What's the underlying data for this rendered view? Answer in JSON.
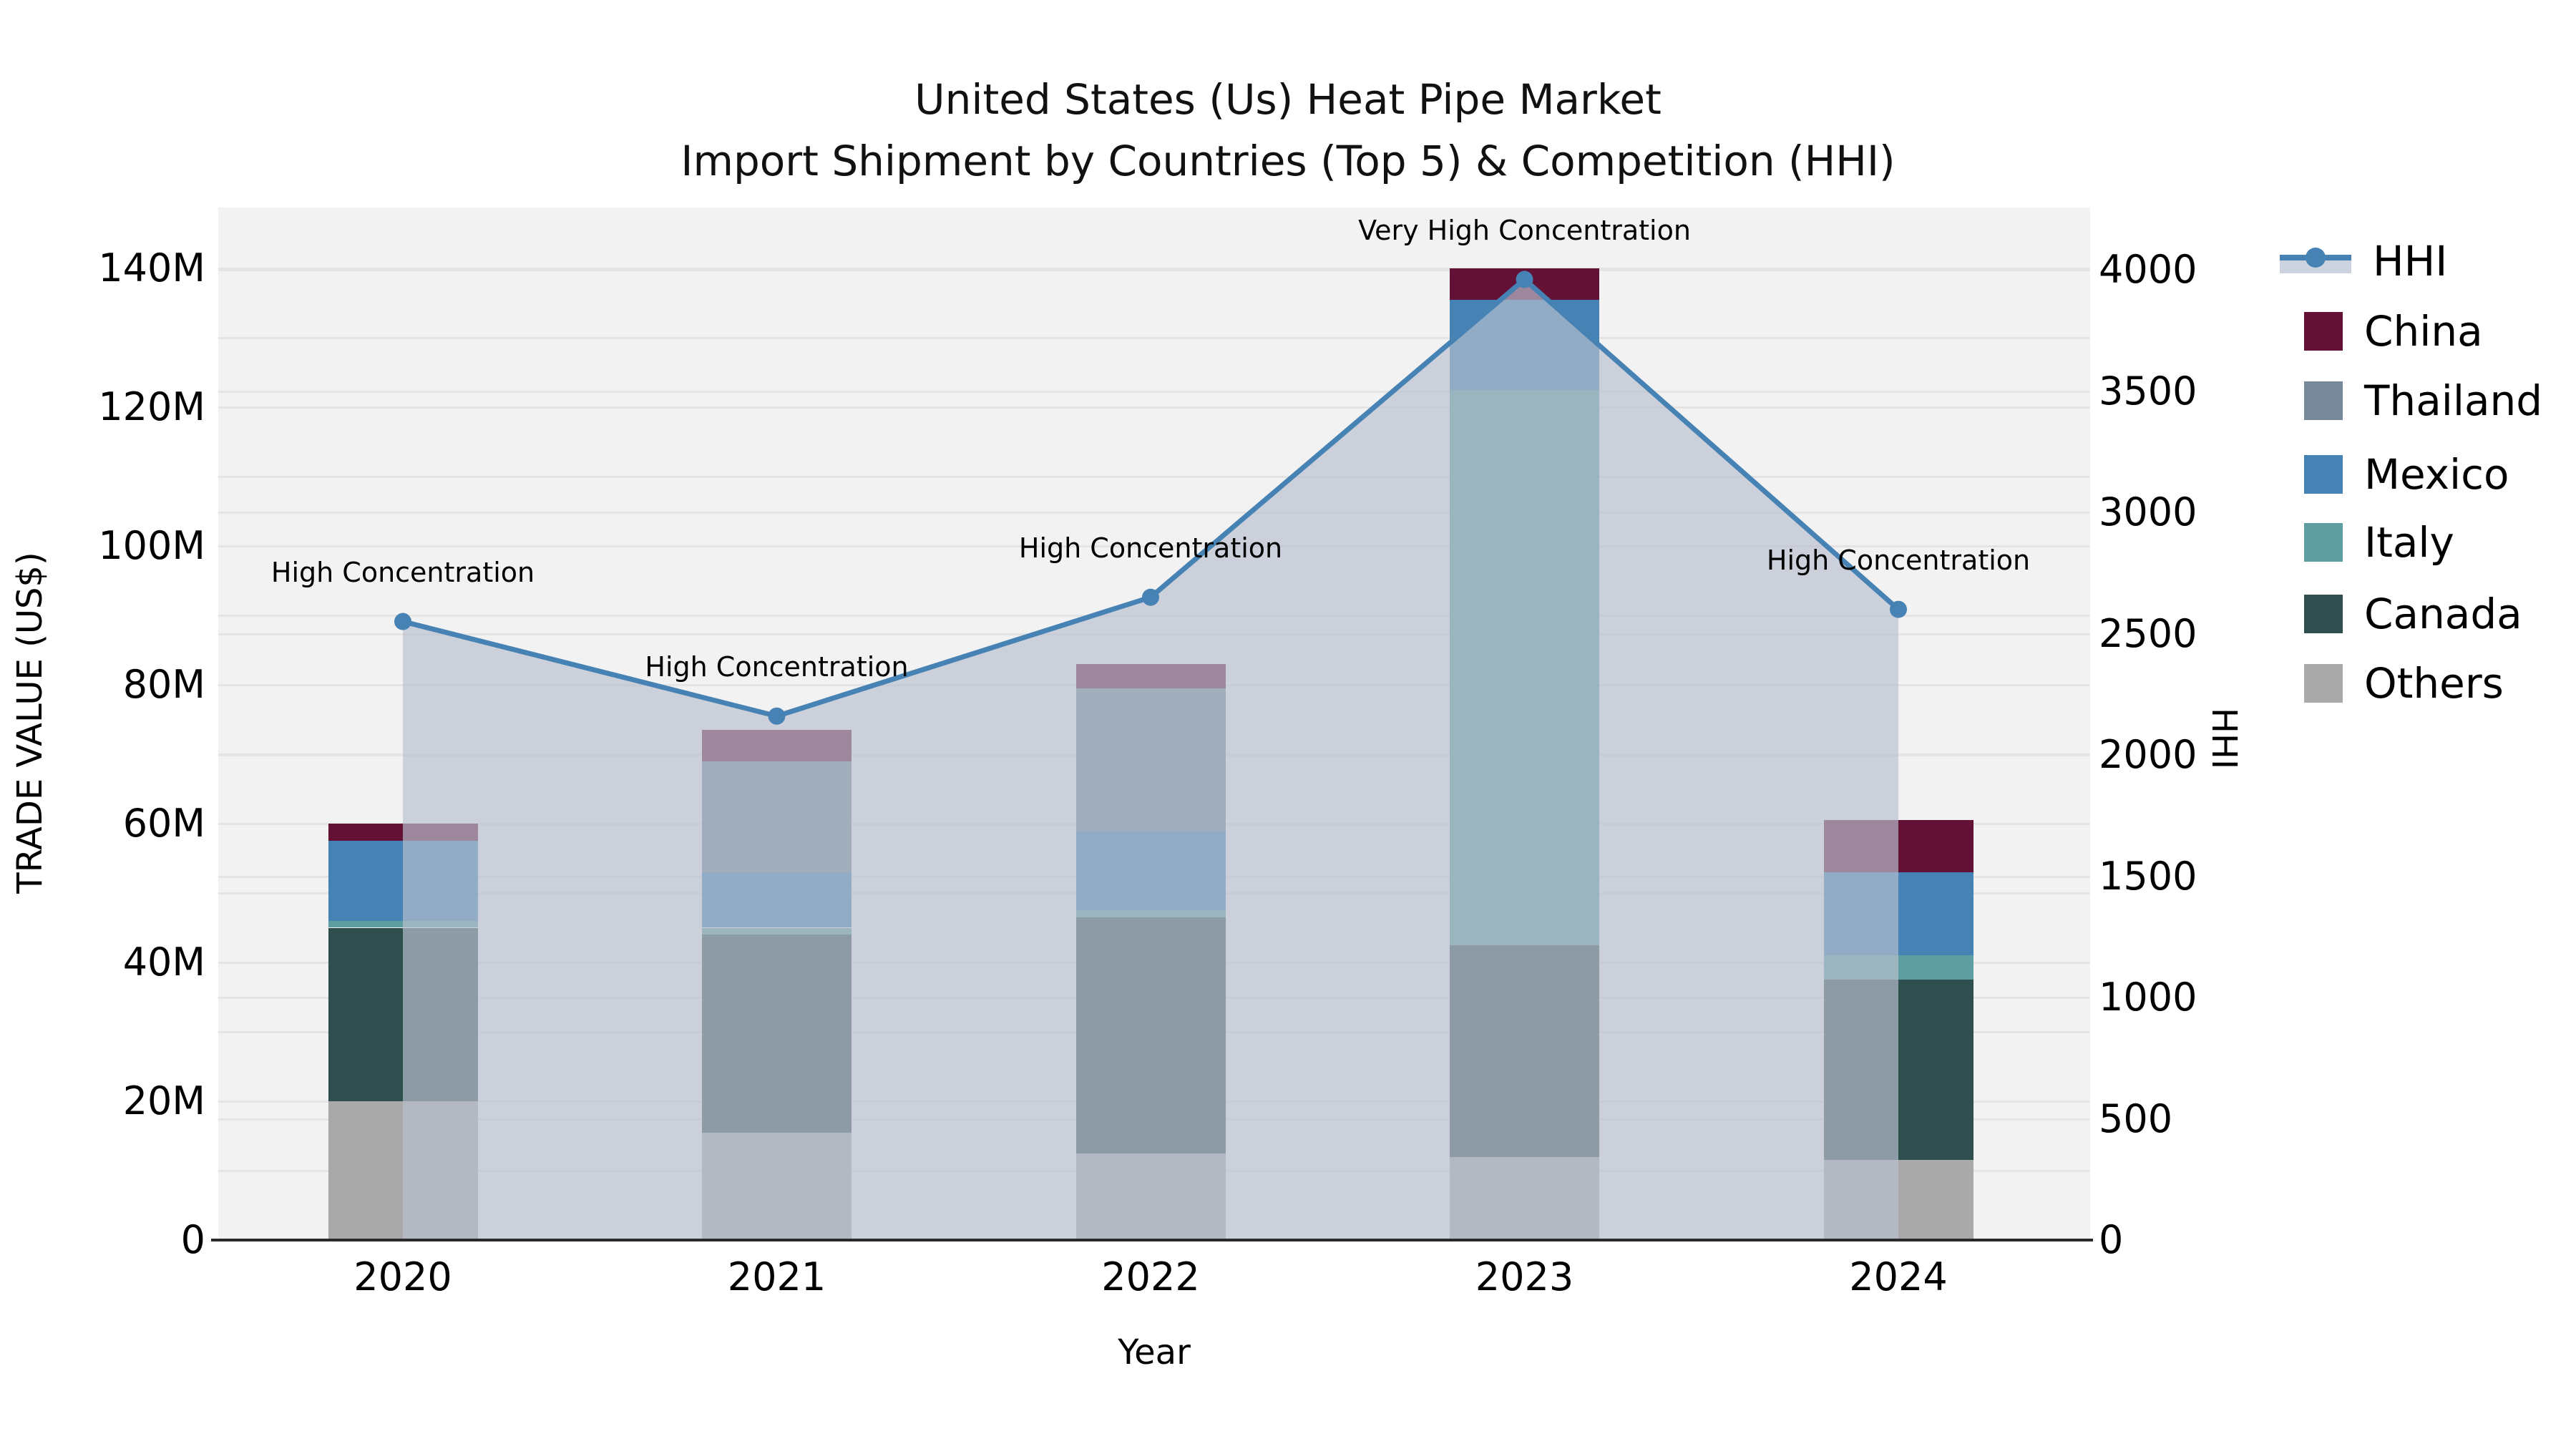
{
  "title": {
    "line1": "United States (Us) Heat Pipe Market",
    "line2": "Import Shipment by Countries (Top 5) & Competition (HHI)"
  },
  "axis_labels": {
    "y_left": "TRADE VALUE (US$)",
    "y_right": "HHI",
    "x": "Year"
  },
  "legend": {
    "items": [
      "HHI",
      "China",
      "Thailand",
      "Mexico",
      "Italy",
      "Canada",
      "Others"
    ]
  },
  "colors": {
    "china": "#641136",
    "thailand": "#778899",
    "mexico": "#4682b4",
    "italy": "#5f9ea0",
    "canada": "#2f4f4f",
    "others": "#a9a9a9",
    "hhi_line": "#4682b4",
    "hhi_fill": "rgba(184,192,206,0.68)",
    "plot_background": "#f2f2f2",
    "gridline": "#e4e4e4",
    "axis_line": "#2a2a2a"
  },
  "chart_data": {
    "type": "combo-stacked-bar-line",
    "title": "United States (Us) Heat Pipe Market — Import Shipment by Countries (Top 5) & Competition (HHI)",
    "categories": [
      "2020",
      "2021",
      "2022",
      "2023",
      "2024"
    ],
    "bar_value_unit": "million US$",
    "stack_order_bottom_to_top": [
      "Others",
      "Canada",
      "Italy",
      "Mexico",
      "Thailand",
      "China"
    ],
    "series": [
      {
        "name": "Others",
        "color": "#a9a9a9",
        "values": [
          20,
          15.5,
          12.5,
          12,
          11.5
        ]
      },
      {
        "name": "Canada",
        "color": "#2f4f4f",
        "values": [
          25,
          28.5,
          34,
          30.5,
          26
        ]
      },
      {
        "name": "Italy",
        "color": "#5f9ea0",
        "values": [
          1,
          1,
          1,
          80,
          3.5
        ]
      },
      {
        "name": "Mexico",
        "color": "#4682b4",
        "values": [
          11.5,
          8,
          11.5,
          13,
          12
        ]
      },
      {
        "name": "Thailand",
        "color": "#778899",
        "values": [
          0,
          16,
          20.5,
          0,
          0
        ]
      },
      {
        "name": "China",
        "color": "#641136",
        "values": [
          2.5,
          4.5,
          3.5,
          4.5,
          7.5
        ]
      }
    ],
    "bar_totals": [
      60,
      73.5,
      83,
      140,
      60.5
    ],
    "line": {
      "name": "HHI",
      "color": "#4682b4",
      "values": [
        2550,
        2160,
        2650,
        3960,
        2600
      ]
    },
    "annotations": [
      {
        "category": "2020",
        "text": "High Concentration"
      },
      {
        "category": "2021",
        "text": "High Concentration"
      },
      {
        "category": "2022",
        "text": "High Concentration"
      },
      {
        "category": "2023",
        "text": "Very High Concentration"
      },
      {
        "category": "2024",
        "text": "High Concentration"
      }
    ],
    "y_left_axis": {
      "label": "TRADE VALUE (US$)",
      "tick_labels": [
        "0",
        "20M",
        "40M",
        "60M",
        "80M",
        "100M",
        "120M",
        "140M"
      ],
      "tick_values_m": [
        0,
        20,
        40,
        60,
        80,
        100,
        120,
        140
      ],
      "lim_m": [
        0,
        148.8
      ],
      "minor_grid_step_m": 10
    },
    "y_right_axis": {
      "label": "HHI",
      "tick_labels": [
        "0",
        "500",
        "1000",
        "1500",
        "2000",
        "2500",
        "3000",
        "3500",
        "4000"
      ],
      "tick_values": [
        0,
        500,
        1000,
        1500,
        2000,
        2500,
        3000,
        3500,
        4000
      ],
      "lim": [
        0,
        4253
      ],
      "grid_step": 500
    },
    "x_axis": {
      "label": "Year",
      "tick_labels": [
        "2020",
        "2021",
        "2022",
        "2023",
        "2024"
      ]
    },
    "grid": "horizontal",
    "legend_position": "right"
  }
}
